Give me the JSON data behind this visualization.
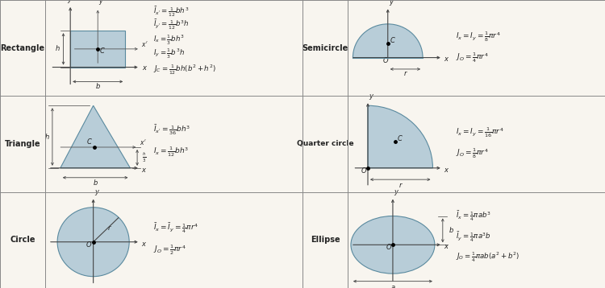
{
  "bg_color": "#f8f5ef",
  "shape_fill": "#b8cdd8",
  "shape_edge": "#5a8a9f",
  "line_color": "#444444",
  "text_color": "#222222",
  "row_labels": [
    "Rectangle",
    "Triangle",
    "Circle"
  ],
  "col_labels": [
    "Semicircle",
    "Quarter circle",
    "Ellipse"
  ],
  "row_formulas": {
    "Rectangle": [
      "$\\bar{I}_{x'} = \\frac{1}{12}bh^3$",
      "$\\bar{I}_{y'} = \\frac{1}{12}b^3h$",
      "$I_x = \\frac{1}{3}bh^3$",
      "$I_y = \\frac{1}{3}b^3h$",
      "$J_C = \\frac{1}{12}bh(b^2 + h^2)$"
    ],
    "Triangle": [
      "$\\bar{I}_{x'} = \\frac{1}{36}bh^3$",
      "$I_x = \\frac{1}{12}bh^3$"
    ],
    "Circle": [
      "$\\bar{I}_x = \\bar{I}_y = \\frac{1}{4}\\pi r^4$",
      "$J_O = \\frac{1}{2}\\pi r^4$"
    ]
  },
  "col_formulas": {
    "Semicircle": [
      "$I_x = I_y = \\frac{1}{8}\\pi r^4$",
      "$J_O = \\frac{1}{4}\\pi r^4$"
    ],
    "Quarter circle": [
      "$I_x = I_y = \\frac{1}{16}\\pi r^4$",
      "$J_O = \\frac{1}{8}\\pi r^4$"
    ],
    "Ellipse": [
      "$\\bar{I}_x = \\frac{1}{4}\\pi ab^3$",
      "$\\bar{I}_y = \\frac{1}{4}\\pi a^3b$",
      "$J_O = \\frac{1}{4}\\pi ab(a^2 + b^2)$"
    ]
  }
}
